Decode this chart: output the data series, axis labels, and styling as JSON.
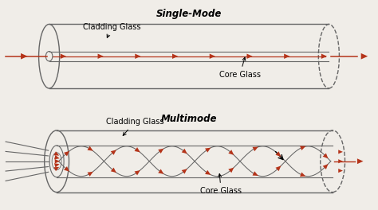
{
  "bg_color": "#f0ede8",
  "arrow_color": "#b5341a",
  "line_color": "#666666",
  "title1": "Single-Mode",
  "title2": "Multimode",
  "label_cladding": "Cladding Glass",
  "label_core": "Core Glass",
  "figsize": [
    4.74,
    2.64
  ],
  "dpi": 100
}
